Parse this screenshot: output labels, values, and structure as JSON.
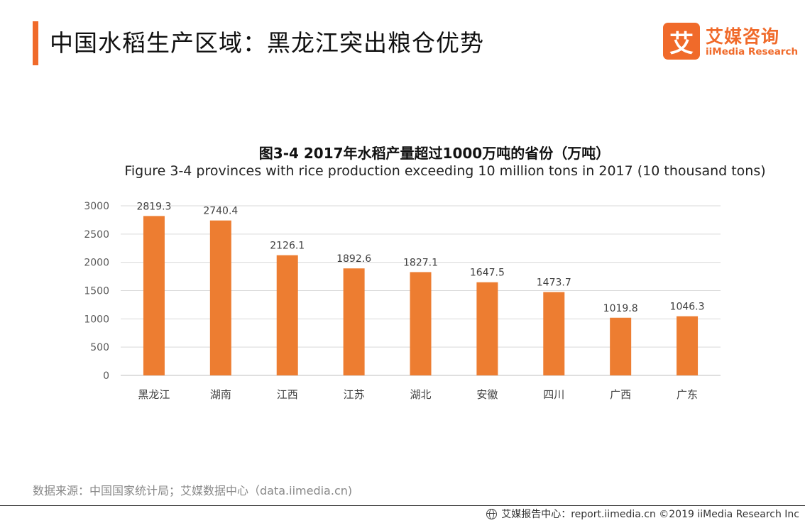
{
  "header": {
    "title": "中国水稻生产区域：黑龙江突出粮仓优势"
  },
  "logo": {
    "mark": "艾",
    "name_cn": "艾媒咨询",
    "name_en": "iiMedia Research"
  },
  "chart_data": {
    "type": "bar",
    "title": "图3-4 2017年水稻产量超过1000万吨的省份（万吨）",
    "subtitle": "Figure 3-4 provinces with rice production exceeding 10 million tons in 2017 (10 thousand tons)",
    "categories": [
      "黑龙江",
      "湖南",
      "江西",
      "江苏",
      "湖北",
      "安徽",
      "四川",
      "广西",
      "广东"
    ],
    "values": [
      2819.3,
      2740.4,
      2126.1,
      1892.6,
      1827.1,
      1647.5,
      1473.7,
      1019.8,
      1046.3
    ],
    "value_labels": [
      "2819.3",
      "2740.4",
      "2126.1",
      "1892.6",
      "1827.1",
      "1647.5",
      "1473.7",
      "1019.8",
      "1046.3"
    ],
    "yticks": [
      "0",
      "500",
      "1000",
      "1500",
      "2000",
      "2500",
      "3000"
    ],
    "ylim": [
      0,
      3000
    ],
    "grid": true,
    "legend": "none",
    "bar_color": "#ed7d31"
  },
  "source": {
    "text": "数据来源：中国国家统计局；艾媒数据中心（data.iimedia.cn)"
  },
  "footer": {
    "icon": "globe-icon",
    "text": "艾媒报告中心：report.iimedia.cn  ©2019  iiMedia Research  Inc"
  }
}
